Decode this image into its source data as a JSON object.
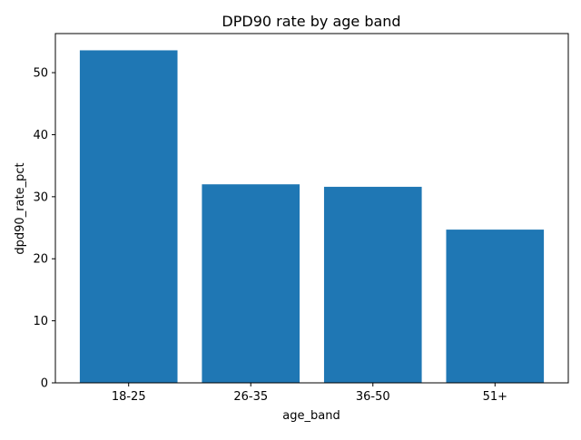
{
  "chart_data": {
    "type": "bar",
    "title": "DPD90 rate by age band",
    "xlabel": "age_band",
    "ylabel": "dpd90_rate_pct",
    "categories": [
      "18-25",
      "26-35",
      "36-50",
      "51+"
    ],
    "values": [
      53.6,
      32.0,
      31.6,
      24.7
    ],
    "ylim": [
      0,
      56.3
    ],
    "yticks": [
      0,
      10,
      20,
      30,
      40,
      50
    ],
    "grid": false,
    "bar_color": "#1f77b4"
  }
}
